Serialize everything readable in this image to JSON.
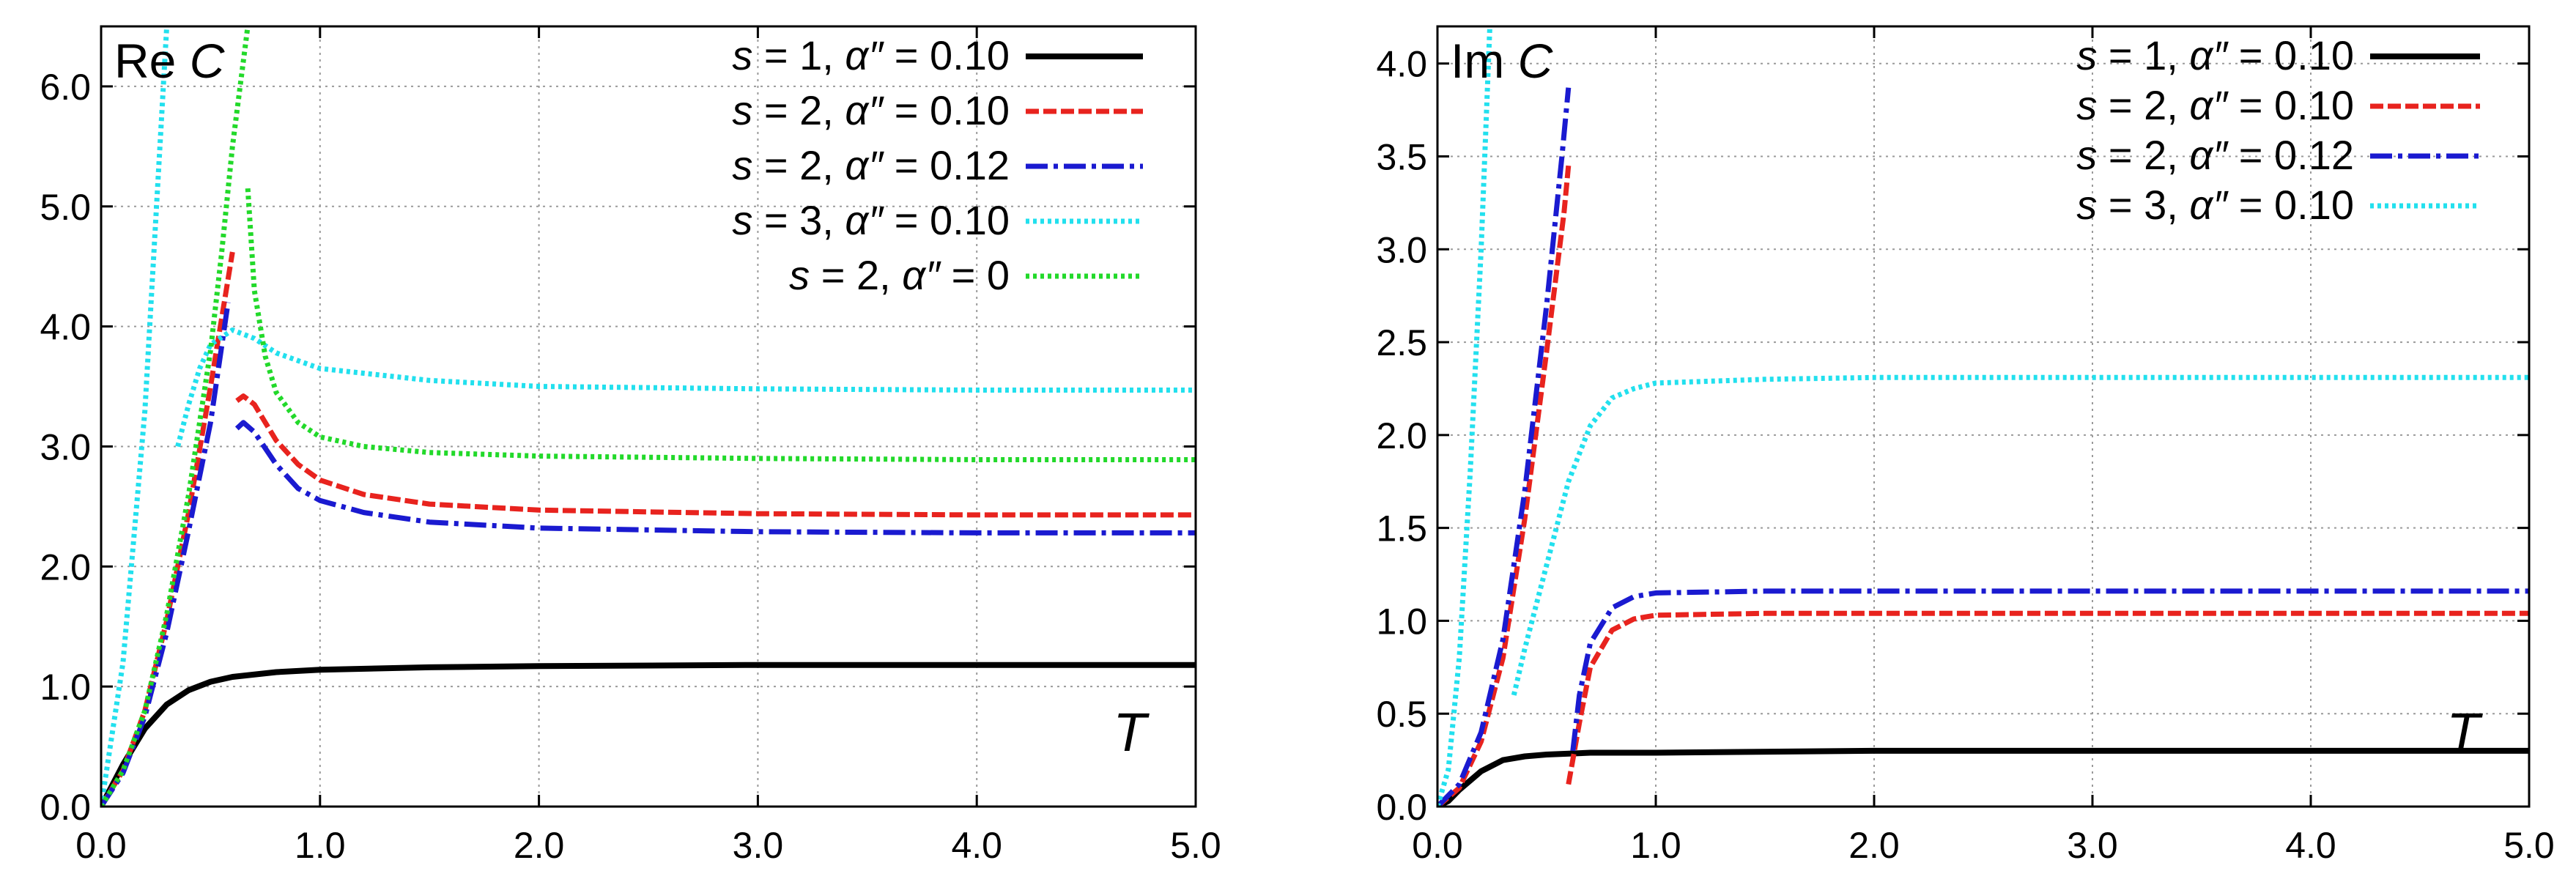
{
  "chart_data": [
    {
      "type": "line",
      "title": "Re C",
      "title_parts": [
        "Re",
        "C"
      ],
      "xlabel": "T",
      "ylabel": "",
      "xlim": [
        0,
        5
      ],
      "ylim": [
        0,
        6.5
      ],
      "grid": true,
      "xticks": [
        0,
        1,
        2,
        3,
        4,
        5
      ],
      "xtick_labels": [
        "0.0",
        "1.0",
        "2.0",
        "3.0",
        "4.0",
        "5.0"
      ],
      "yticks": [
        0,
        1,
        2,
        3,
        4,
        5,
        6
      ],
      "ytick_labels": [
        "0.0",
        "1.0",
        "2.0",
        "3.0",
        "4.0",
        "5.0",
        "6.0"
      ],
      "legend_position": "top-right",
      "series": [
        {
          "name": "s = 1, α″ = 0.10",
          "label": {
            "var": "s",
            "eq1": " = 1, ",
            "alpha": "α″",
            "eq2": " = 0.10"
          },
          "color": "#000000",
          "style": "solid",
          "segments": [
            [
              [
                0,
                0
              ],
              [
                0.1,
                0.35
              ],
              [
                0.2,
                0.65
              ],
              [
                0.3,
                0.85
              ],
              [
                0.4,
                0.97
              ],
              [
                0.5,
                1.04
              ],
              [
                0.6,
                1.08
              ],
              [
                0.8,
                1.12
              ],
              [
                1.0,
                1.14
              ],
              [
                1.5,
                1.16
              ],
              [
                2.0,
                1.17
              ],
              [
                3.0,
                1.18
              ],
              [
                4.0,
                1.18
              ],
              [
                5.0,
                1.18
              ]
            ]
          ]
        },
        {
          "name": "s = 2, α″ = 0.10",
          "label": {
            "var": "s",
            "eq1": " = 2, ",
            "alpha": "α″",
            "eq2": " = 0.10"
          },
          "color": "#e8231e",
          "style": "dashed",
          "segments": [
            [
              [
                0,
                0
              ],
              [
                0.1,
                0.3
              ],
              [
                0.2,
                0.8
              ],
              [
                0.3,
                1.55
              ],
              [
                0.4,
                2.45
              ],
              [
                0.5,
                3.5
              ],
              [
                0.6,
                4.62
              ]
            ],
            [
              [
                0.62,
                3.38
              ],
              [
                0.65,
                3.42
              ],
              [
                0.7,
                3.35
              ],
              [
                0.8,
                3.05
              ],
              [
                0.9,
                2.85
              ],
              [
                1.0,
                2.72
              ],
              [
                1.2,
                2.6
              ],
              [
                1.5,
                2.52
              ],
              [
                2.0,
                2.47
              ],
              [
                3.0,
                2.44
              ],
              [
                4.0,
                2.43
              ],
              [
                5.0,
                2.43
              ]
            ]
          ]
        },
        {
          "name": "s = 2, α″ = 0.12",
          "label": {
            "var": "s",
            "eq1": " = 2, ",
            "alpha": "α″",
            "eq2": " = 0.12"
          },
          "color": "#1a1ad0",
          "style": "dashdot",
          "segments": [
            [
              [
                0,
                0
              ],
              [
                0.1,
                0.28
              ],
              [
                0.2,
                0.75
              ],
              [
                0.3,
                1.45
              ],
              [
                0.4,
                2.3
              ],
              [
                0.5,
                3.2
              ],
              [
                0.58,
                4.2
              ]
            ],
            [
              [
                0.62,
                3.15
              ],
              [
                0.65,
                3.2
              ],
              [
                0.7,
                3.12
              ],
              [
                0.8,
                2.85
              ],
              [
                0.9,
                2.65
              ],
              [
                1.0,
                2.55
              ],
              [
                1.2,
                2.45
              ],
              [
                1.5,
                2.37
              ],
              [
                2.0,
                2.32
              ],
              [
                3.0,
                2.29
              ],
              [
                4.0,
                2.28
              ],
              [
                5.0,
                2.28
              ]
            ]
          ]
        },
        {
          "name": "s = 3, α″ = 0.10",
          "label": {
            "var": "s",
            "eq1": " = 3, ",
            "alpha": "α″",
            "eq2": " = 0.10"
          },
          "color": "#22e0ee",
          "style": "dotted",
          "segments": [
            [
              [
                0,
                0
              ],
              [
                0.1,
                1.2
              ],
              [
                0.2,
                3.3
              ],
              [
                0.3,
                6.5
              ]
            ],
            [
              [
                0.35,
                3.0
              ],
              [
                0.4,
                3.35
              ],
              [
                0.45,
                3.65
              ],
              [
                0.5,
                3.85
              ],
              [
                0.6,
                3.97
              ],
              [
                0.7,
                3.9
              ],
              [
                0.8,
                3.78
              ],
              [
                1.0,
                3.65
              ],
              [
                1.5,
                3.55
              ],
              [
                2.0,
                3.5
              ],
              [
                3.0,
                3.48
              ],
              [
                4.0,
                3.47
              ],
              [
                5.0,
                3.47
              ]
            ]
          ]
        },
        {
          "name": "s = 2, α″ = 0",
          "label": {
            "var": "s",
            "eq1": " = 2, ",
            "alpha": "α″",
            "eq2": " = 0"
          },
          "color": "#22d92a",
          "style": "dotted",
          "segments": [
            [
              [
                0,
                0
              ],
              [
                0.1,
                0.3
              ],
              [
                0.2,
                0.8
              ],
              [
                0.3,
                1.6
              ],
              [
                0.4,
                2.6
              ],
              [
                0.5,
                3.8
              ],
              [
                0.55,
                4.6
              ],
              [
                0.6,
                5.5
              ],
              [
                0.67,
                6.5
              ]
            ],
            [
              [
                0.67,
                5.15
              ],
              [
                0.7,
                4.3
              ],
              [
                0.75,
                3.75
              ],
              [
                0.8,
                3.45
              ],
              [
                0.9,
                3.2
              ],
              [
                1.0,
                3.08
              ],
              [
                1.2,
                3.0
              ],
              [
                1.5,
                2.95
              ],
              [
                2.0,
                2.92
              ],
              [
                3.0,
                2.9
              ],
              [
                4.0,
                2.89
              ],
              [
                5.0,
                2.89
              ]
            ]
          ]
        }
      ]
    },
    {
      "type": "line",
      "title": "Im C",
      "title_parts": [
        "Im",
        "C"
      ],
      "xlabel": "T",
      "ylabel": "",
      "xlim": [
        0,
        5
      ],
      "ylim": [
        0,
        4.2
      ],
      "grid": true,
      "xticks": [
        0,
        1,
        2,
        3,
        4,
        5
      ],
      "xtick_labels": [
        "0.0",
        "1.0",
        "2.0",
        "3.0",
        "4.0",
        "5.0"
      ],
      "yticks": [
        0,
        0.5,
        1,
        1.5,
        2,
        2.5,
        3,
        3.5,
        4
      ],
      "ytick_labels": [
        "0.0",
        "0.5",
        "1.0",
        "1.5",
        "2.0",
        "2.5",
        "3.0",
        "3.5",
        "4.0"
      ],
      "legend_position": "top-right",
      "series": [
        {
          "name": "s = 1, α″ = 0.10",
          "label": {
            "var": "s",
            "eq1": " = 1, ",
            "alpha": "α″",
            "eq2": " = 0.10"
          },
          "color": "#000000",
          "style": "solid",
          "segments": [
            [
              [
                0,
                0
              ],
              [
                0.05,
                0.03
              ],
              [
                0.1,
                0.09
              ],
              [
                0.2,
                0.19
              ],
              [
                0.3,
                0.25
              ],
              [
                0.4,
                0.27
              ],
              [
                0.5,
                0.28
              ],
              [
                0.7,
                0.29
              ],
              [
                1.0,
                0.29
              ],
              [
                2.0,
                0.3
              ],
              [
                3.0,
                0.3
              ],
              [
                4.0,
                0.3
              ],
              [
                5.0,
                0.3
              ]
            ]
          ]
        },
        {
          "name": "s = 2, α″ = 0.10",
          "label": {
            "var": "s",
            "eq1": " = 2, ",
            "alpha": "α″",
            "eq2": " = 0.10"
          },
          "color": "#e8231e",
          "style": "dashed",
          "segments": [
            [
              [
                0,
                0
              ],
              [
                0.1,
                0.1
              ],
              [
                0.2,
                0.35
              ],
              [
                0.3,
                0.8
              ],
              [
                0.4,
                1.55
              ],
              [
                0.5,
                2.45
              ],
              [
                0.58,
                3.2
              ],
              [
                0.6,
                3.45
              ]
            ],
            [
              [
                0.6,
                0.12
              ],
              [
                0.65,
                0.45
              ],
              [
                0.7,
                0.75
              ],
              [
                0.8,
                0.95
              ],
              [
                0.9,
                1.01
              ],
              [
                1.0,
                1.03
              ],
              [
                1.5,
                1.04
              ],
              [
                2.0,
                1.04
              ],
              [
                3.0,
                1.04
              ],
              [
                4.0,
                1.04
              ],
              [
                5.0,
                1.04
              ]
            ]
          ]
        },
        {
          "name": "s = 2, α″ = 0.12",
          "label": {
            "var": "s",
            "eq1": " = 2, ",
            "alpha": "α″",
            "eq2": " = 0.12"
          },
          "color": "#1a1ad0",
          "style": "dashdot",
          "segments": [
            [
              [
                0,
                0
              ],
              [
                0.1,
                0.12
              ],
              [
                0.2,
                0.4
              ],
              [
                0.3,
                0.9
              ],
              [
                0.4,
                1.7
              ],
              [
                0.5,
                2.7
              ],
              [
                0.57,
                3.5
              ],
              [
                0.6,
                3.87
              ]
            ],
            [
              [
                0.62,
                0.3
              ],
              [
                0.65,
                0.6
              ],
              [
                0.7,
                0.88
              ],
              [
                0.8,
                1.07
              ],
              [
                0.9,
                1.13
              ],
              [
                1.0,
                1.15
              ],
              [
                1.5,
                1.16
              ],
              [
                2.0,
                1.16
              ],
              [
                3.0,
                1.16
              ],
              [
                4.0,
                1.16
              ],
              [
                5.0,
                1.16
              ]
            ]
          ]
        },
        {
          "name": "s = 3, α″ = 0.10",
          "label": {
            "var": "s",
            "eq1": " = 3, ",
            "alpha": "α″",
            "eq2": " = 0.10"
          },
          "color": "#22e0ee",
          "style": "dotted",
          "segments": [
            [
              [
                0,
                0
              ],
              [
                0.05,
                0.2
              ],
              [
                0.1,
                0.8
              ],
              [
                0.15,
                1.8
              ],
              [
                0.2,
                3.0
              ],
              [
                0.24,
                4.2
              ]
            ],
            [
              [
                0.35,
                0.6
              ],
              [
                0.4,
                0.85
              ],
              [
                0.5,
                1.3
              ],
              [
                0.6,
                1.75
              ],
              [
                0.7,
                2.05
              ],
              [
                0.8,
                2.2
              ],
              [
                0.9,
                2.25
              ],
              [
                1.0,
                2.28
              ],
              [
                1.5,
                2.3
              ],
              [
                2.0,
                2.31
              ],
              [
                3.0,
                2.31
              ],
              [
                4.0,
                2.31
              ],
              [
                5.0,
                2.31
              ]
            ]
          ]
        }
      ]
    }
  ]
}
